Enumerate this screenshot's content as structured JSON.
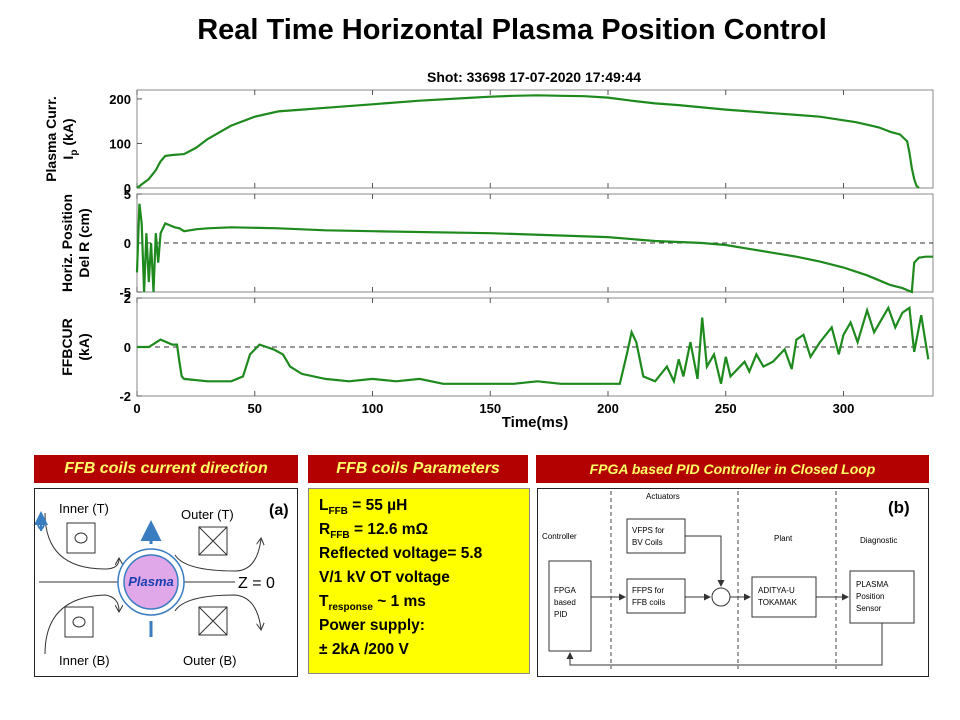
{
  "title": "Real Time Horizontal Plasma Position Control",
  "chart_header": "Shot: 33698     17-07-2020 17:49:44",
  "chart_data": [
    {
      "type": "line",
      "ylabel": [
        "Plasma Curr.",
        "I",
        "p",
        " (kA)"
      ],
      "ylim": [
        0,
        220
      ],
      "yticks": [
        0,
        100,
        200
      ],
      "zero_line": false,
      "series": [
        {
          "x": [
            0,
            2,
            5,
            8,
            10,
            12,
            15,
            20,
            25,
            30,
            40,
            50,
            60,
            70,
            80,
            100,
            120,
            140,
            150,
            160,
            170,
            180,
            190,
            200,
            210,
            220,
            230,
            240,
            250,
            260,
            270,
            280,
            290,
            300,
            305,
            310,
            315,
            318,
            320,
            324,
            326,
            327,
            328,
            329,
            330,
            331,
            332
          ],
          "y": [
            0,
            8,
            20,
            40,
            60,
            72,
            74,
            76,
            90,
            110,
            140,
            160,
            172,
            176,
            180,
            188,
            196,
            202,
            205,
            207,
            208,
            207,
            206,
            203,
            196,
            190,
            186,
            181,
            176,
            172,
            168,
            164,
            160,
            152,
            148,
            142,
            136,
            130,
            126,
            120,
            110,
            105,
            80,
            45,
            20,
            5,
            0
          ]
        }
      ]
    },
    {
      "type": "line",
      "ylabel": [
        "Horiz. Position",
        "Del R (cm)"
      ],
      "ylim": [
        -5,
        5
      ],
      "yticks": [
        -5,
        0,
        5
      ],
      "zero_line": true,
      "series": [
        {
          "x": [
            0,
            1,
            2,
            3,
            4,
            5,
            6,
            7,
            8,
            9,
            10,
            12,
            14,
            16,
            18,
            20,
            25,
            30,
            40,
            60,
            80,
            100,
            150,
            200,
            220,
            240,
            250,
            260,
            270,
            280,
            290,
            300,
            305,
            310,
            315,
            318,
            320,
            325,
            328,
            329,
            330,
            332,
            335,
            338
          ],
          "y": [
            -3,
            4,
            2,
            -5,
            1,
            -4,
            0,
            -5,
            1,
            -2,
            1,
            2,
            1.8,
            1.6,
            1.5,
            1.2,
            1.4,
            1.5,
            1.6,
            1.5,
            1.3,
            1.2,
            1.0,
            0.6,
            0.2,
            0,
            -0.2,
            -0.6,
            -1.0,
            -1.4,
            -1.9,
            -2.5,
            -2.9,
            -3.3,
            -3.8,
            -4.1,
            -4.3,
            -4.6,
            -4.9,
            -5,
            -2,
            -1.5,
            -1.4,
            -1.4
          ]
        }
      ]
    },
    {
      "type": "line",
      "ylabel": [
        "FFBCUR",
        "(kA)"
      ],
      "ylim": [
        -2,
        2
      ],
      "yticks": [
        -2,
        0,
        2
      ],
      "zero_line": true,
      "xlabel": "Time(ms)",
      "xticks": [
        0,
        50,
        100,
        150,
        200,
        250,
        300
      ],
      "series": [
        {
          "x": [
            0,
            5,
            10,
            15,
            17,
            18,
            19,
            20,
            30,
            40,
            45,
            48,
            52,
            55,
            58,
            62,
            65,
            70,
            80,
            90,
            100,
            110,
            120,
            130,
            140,
            150,
            160,
            170,
            180,
            190,
            200,
            205,
            208,
            210,
            212,
            215,
            220,
            225,
            228,
            230,
            232,
            235,
            238,
            240,
            242,
            245,
            248,
            250,
            252,
            255,
            258,
            260,
            263,
            266,
            270,
            275,
            278,
            280,
            283,
            286,
            290,
            295,
            298,
            300,
            303,
            306,
            310,
            313,
            316,
            319,
            322,
            325,
            328,
            330,
            333,
            336
          ],
          "y": [
            0,
            0,
            0.3,
            0.1,
            0.1,
            -0.6,
            -1.2,
            -1.3,
            -1.4,
            -1.4,
            -1.2,
            -0.3,
            0.1,
            0,
            -0.1,
            -0.3,
            -0.8,
            -1.1,
            -1.3,
            -1.4,
            -1.3,
            -1.4,
            -1.3,
            -1.5,
            -1.5,
            -1.5,
            -1.5,
            -1.4,
            -1.5,
            -1.5,
            -1.5,
            -1.5,
            -0.3,
            0.6,
            0.2,
            -1.2,
            -1.4,
            -0.8,
            -1.4,
            -0.5,
            -1.2,
            0.2,
            -1.3,
            1.2,
            -0.8,
            -0.3,
            -1.5,
            -0.4,
            -1.2,
            -0.9,
            -0.6,
            -1.0,
            -0.3,
            -0.8,
            -0.6,
            -0.1,
            -0.9,
            0.3,
            0.5,
            -0.4,
            0.2,
            0.8,
            -0.3,
            0.5,
            1.0,
            0.2,
            1.5,
            0.6,
            1.1,
            1.6,
            0.8,
            1.4,
            1.6,
            -0.2,
            1.3,
            -0.5
          ]
        }
      ]
    }
  ],
  "colors": {
    "line": "#1e8a1e",
    "header_bg": "#b30000",
    "header_text": "#ffff66",
    "params_bg": "#ffff00",
    "plasma": "#e0a8e8",
    "arrow": "#3a7cc0"
  },
  "headers": {
    "coils_direction": "FFB coils current direction",
    "coils_params": "FFB coils  Parameters",
    "controller": "FPGA based PID Controller in Closed Loop"
  },
  "coils_diagram": {
    "tag": "(a)",
    "inner_t": "Inner (T)",
    "outer_t": "Outer (T)",
    "inner_b": "Inner (B)",
    "outer_b": "Outer (B)",
    "plasma": "Plasma",
    "z_label": "Z = 0"
  },
  "params": {
    "l_main": "L",
    "l_sub": "FFB",
    "l_val": " = 55 µH",
    "r_main": "R",
    "r_sub": "FFB",
    "r_val": " = 12.6 mΩ",
    "reflected_1": "Reflected  voltage=  5.8",
    "reflected_2": "V/1 kV OT voltage",
    "t_main": "T",
    "t_sub": "response",
    "t_val": " ~ 1 ms",
    "power_1": "Power supply:",
    "power_2": "± 2kA /200 V"
  },
  "controller_diagram": {
    "tag": "(b)",
    "actuators": "Actuators",
    "controller": "Controller",
    "plant": "Plant",
    "diagnostic": "Diagnostic",
    "fpga": [
      "FPGA",
      "based",
      "PID"
    ],
    "vfps": [
      "VFPS for",
      "BV Coils"
    ],
    "ffps": [
      "FFPS for",
      "FFB coils"
    ],
    "aditya": [
      "ADITYA-U",
      "TOKAMAK"
    ],
    "sensor": [
      "PLASMA",
      "Position",
      "Sensor"
    ]
  }
}
